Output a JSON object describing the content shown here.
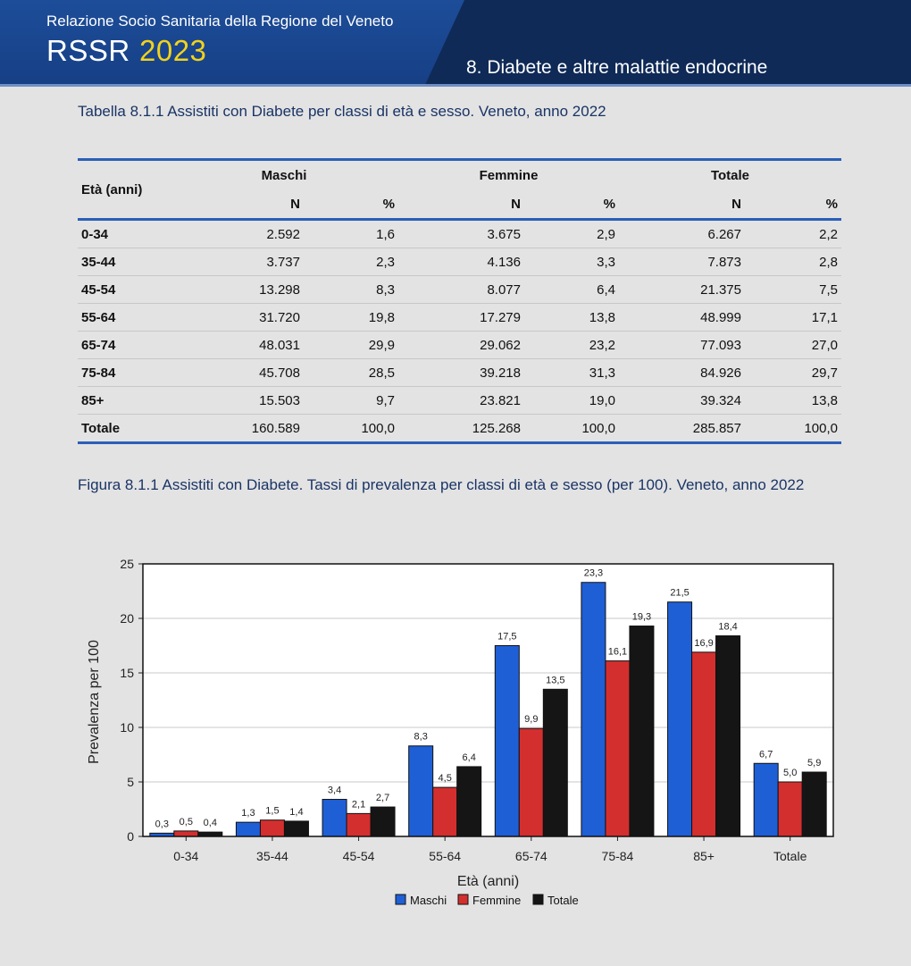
{
  "header": {
    "subtitle": "Relazione Socio Sanitaria della Regione del Veneto",
    "brand": "RSSR",
    "year": "2023",
    "chapter": "8. Diabete e altre malattie endocrine"
  },
  "table": {
    "caption": "Tabella 8.1.1 Assistiti con Diabete per classi di età e sesso. Veneto, anno 2022",
    "row_header": "Età (anni)",
    "groups": [
      "Maschi",
      "Femmine",
      "Totale"
    ],
    "sub_headers": [
      "N",
      "%",
      "N",
      "%",
      "N",
      "%"
    ],
    "rows": [
      {
        "label": "0-34",
        "values": [
          "2.592",
          "1,6",
          "3.675",
          "2,9",
          "6.267",
          "2,2"
        ]
      },
      {
        "label": "35-44",
        "values": [
          "3.737",
          "2,3",
          "4.136",
          "3,3",
          "7.873",
          "2,8"
        ]
      },
      {
        "label": "45-54",
        "values": [
          "13.298",
          "8,3",
          "8.077",
          "6,4",
          "21.375",
          "7,5"
        ]
      },
      {
        "label": "55-64",
        "values": [
          "31.720",
          "19,8",
          "17.279",
          "13,8",
          "48.999",
          "17,1"
        ]
      },
      {
        "label": "65-74",
        "values": [
          "48.031",
          "29,9",
          "29.062",
          "23,2",
          "77.093",
          "27,0"
        ]
      },
      {
        "label": "75-84",
        "values": [
          "45.708",
          "28,5",
          "39.218",
          "31,3",
          "84.926",
          "29,7"
        ]
      },
      {
        "label": "85+",
        "values": [
          "15.503",
          "9,7",
          "23.821",
          "19,0",
          "39.324",
          "13,8"
        ]
      },
      {
        "label": "Totale",
        "values": [
          "160.589",
          "100,0",
          "125.268",
          "100,0",
          "285.857",
          "100,0"
        ]
      }
    ]
  },
  "figure": {
    "caption": "Figura 8.1.1 Assistiti con Diabete. Tassi di prevalenza per classi di età e sesso (per 100). Veneto, anno 2022"
  },
  "chart_data": {
    "type": "bar",
    "categories": [
      "0-34",
      "35-44",
      "45-54",
      "55-64",
      "65-74",
      "75-84",
      "85+",
      "Totale"
    ],
    "series": [
      {
        "name": "Maschi",
        "color": "#1f5fd6",
        "values": [
          0.3,
          1.3,
          3.4,
          8.3,
          17.5,
          23.3,
          21.5,
          6.7
        ],
        "labels": [
          "0,3",
          "1,3",
          "3,4",
          "8,3",
          "17,5",
          "23,3",
          "21,5",
          "6,7"
        ]
      },
      {
        "name": "Femmine",
        "color": "#d42f2f",
        "values": [
          0.5,
          1.5,
          2.1,
          4.5,
          9.9,
          16.1,
          16.9,
          5.0
        ],
        "labels": [
          "0,5",
          "1,5",
          "2,1",
          "4,5",
          "9,9",
          "16,1",
          "16,9",
          "5,0"
        ]
      },
      {
        "name": "Totale",
        "color": "#151515",
        "values": [
          0.4,
          1.4,
          2.7,
          6.4,
          13.5,
          19.3,
          18.4,
          5.9
        ],
        "labels": [
          "0,4",
          "1,4",
          "2,7",
          "6,4",
          "13,5",
          "19,3",
          "18,4",
          "5,9"
        ]
      }
    ],
    "xlabel": "Età (anni)",
    "ylabel": "Prevalenza per 100",
    "ylim": [
      0,
      25
    ],
    "yticks": [
      0,
      5,
      10,
      15,
      20,
      25
    ],
    "grid": true,
    "legend": "bottom-center"
  }
}
